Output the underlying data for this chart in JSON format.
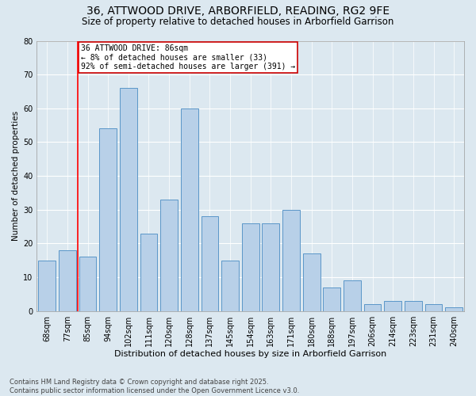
{
  "title": "36, ATTWOOD DRIVE, ARBORFIELD, READING, RG2 9FE",
  "subtitle": "Size of property relative to detached houses in Arborfield Garrison",
  "xlabel": "Distribution of detached houses by size in Arborfield Garrison",
  "ylabel": "Number of detached properties",
  "categories": [
    "68sqm",
    "77sqm",
    "85sqm",
    "94sqm",
    "102sqm",
    "111sqm",
    "120sqm",
    "128sqm",
    "137sqm",
    "145sqm",
    "154sqm",
    "163sqm",
    "171sqm",
    "180sqm",
    "188sqm",
    "197sqm",
    "206sqm",
    "214sqm",
    "223sqm",
    "231sqm",
    "240sqm"
  ],
  "values": [
    15,
    18,
    16,
    54,
    66,
    23,
    33,
    60,
    28,
    15,
    26,
    26,
    30,
    17,
    7,
    9,
    2,
    3,
    3,
    2,
    1
  ],
  "bar_color": "#b8d0e8",
  "bar_edge_color": "#5a96c8",
  "background_color": "#dce8f0",
  "grid_color": "#ffffff",
  "redline_index": 1.5,
  "annotation_text": "36 ATTWOOD DRIVE: 86sqm\n← 8% of detached houses are smaller (33)\n92% of semi-detached houses are larger (391) →",
  "annotation_box_color": "#ffffff",
  "annotation_box_edge": "#cc0000",
  "ylim": [
    0,
    80
  ],
  "yticks": [
    0,
    10,
    20,
    30,
    40,
    50,
    60,
    70,
    80
  ],
  "footer": "Contains HM Land Registry data © Crown copyright and database right 2025.\nContains public sector information licensed under the Open Government Licence v3.0.",
  "title_fontsize": 10,
  "subtitle_fontsize": 8.5,
  "xlabel_fontsize": 8,
  "ylabel_fontsize": 7.5,
  "tick_fontsize": 7,
  "annotation_fontsize": 7,
  "footer_fontsize": 6
}
